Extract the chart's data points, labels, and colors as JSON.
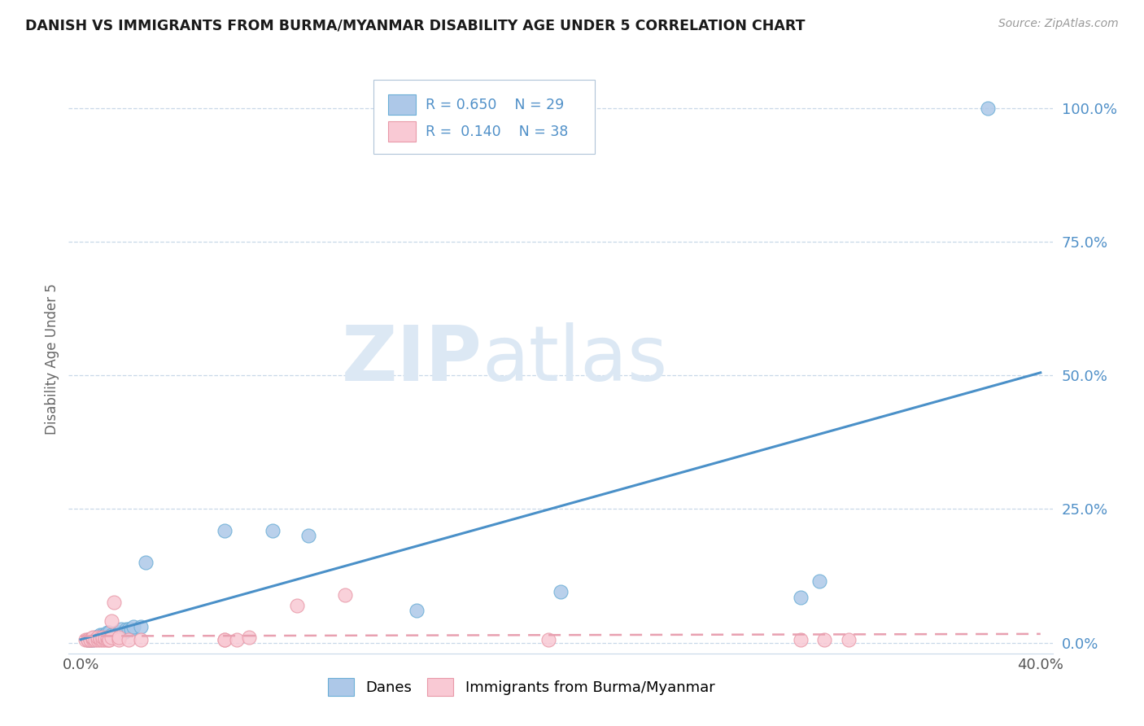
{
  "title": "DANISH VS IMMIGRANTS FROM BURMA/MYANMAR DISABILITY AGE UNDER 5 CORRELATION CHART",
  "source": "Source: ZipAtlas.com",
  "ylabel": "Disability Age Under 5",
  "xlabel": "",
  "xlim": [
    -0.005,
    0.405
  ],
  "ylim": [
    -0.02,
    1.08
  ],
  "yticks": [
    0.0,
    0.25,
    0.5,
    0.75,
    1.0
  ],
  "ytick_labels": [
    "0.0%",
    "25.0%",
    "50.0%",
    "75.0%",
    "100.0%"
  ],
  "xtick_left": 0.0,
  "xtick_right": 0.4,
  "xtick_label_left": "0.0%",
  "xtick_label_right": "40.0%",
  "danes_R": 0.65,
  "danes_N": 29,
  "immigrants_R": 0.14,
  "immigrants_N": 38,
  "danes_color": "#adc8e8",
  "danes_edge_color": "#6baed6",
  "immigrants_color": "#f9c9d4",
  "immigrants_edge_color": "#e899a8",
  "danes_line_color": "#4a90c8",
  "immigrants_line_color": "#e8a0b0",
  "ytick_color": "#5090c8",
  "background_color": "#ffffff",
  "watermark_text": "ZIPatlas",
  "watermark_color": "#dce8f4",
  "danes_x": [
    0.003,
    0.004,
    0.005,
    0.006,
    0.007,
    0.008,
    0.009,
    0.01,
    0.011,
    0.012,
    0.013,
    0.015,
    0.016,
    0.017,
    0.018,
    0.019,
    0.02,
    0.021,
    0.022,
    0.025,
    0.027,
    0.06,
    0.08,
    0.095,
    0.14,
    0.2,
    0.3,
    0.308,
    0.378
  ],
  "danes_y": [
    0.005,
    0.005,
    0.005,
    0.01,
    0.01,
    0.015,
    0.015,
    0.015,
    0.02,
    0.02,
    0.015,
    0.02,
    0.02,
    0.025,
    0.02,
    0.025,
    0.025,
    0.025,
    0.03,
    0.03,
    0.15,
    0.21,
    0.21,
    0.2,
    0.06,
    0.095,
    0.085,
    0.115,
    1.0
  ],
  "immigrants_x": [
    0.002,
    0.003,
    0.003,
    0.004,
    0.004,
    0.005,
    0.005,
    0.005,
    0.006,
    0.007,
    0.007,
    0.008,
    0.008,
    0.009,
    0.009,
    0.01,
    0.01,
    0.011,
    0.011,
    0.012,
    0.012,
    0.013,
    0.013,
    0.014,
    0.016,
    0.016,
    0.02,
    0.025,
    0.06,
    0.06,
    0.065,
    0.07,
    0.09,
    0.11,
    0.195,
    0.3,
    0.31,
    0.32
  ],
  "immigrants_y": [
    0.005,
    0.005,
    0.005,
    0.005,
    0.005,
    0.005,
    0.008,
    0.01,
    0.005,
    0.005,
    0.01,
    0.005,
    0.008,
    0.005,
    0.01,
    0.005,
    0.008,
    0.005,
    0.01,
    0.005,
    0.005,
    0.01,
    0.04,
    0.075,
    0.005,
    0.01,
    0.005,
    0.005,
    0.005,
    0.005,
    0.005,
    0.01,
    0.07,
    0.09,
    0.005,
    0.005,
    0.005,
    0.005
  ]
}
